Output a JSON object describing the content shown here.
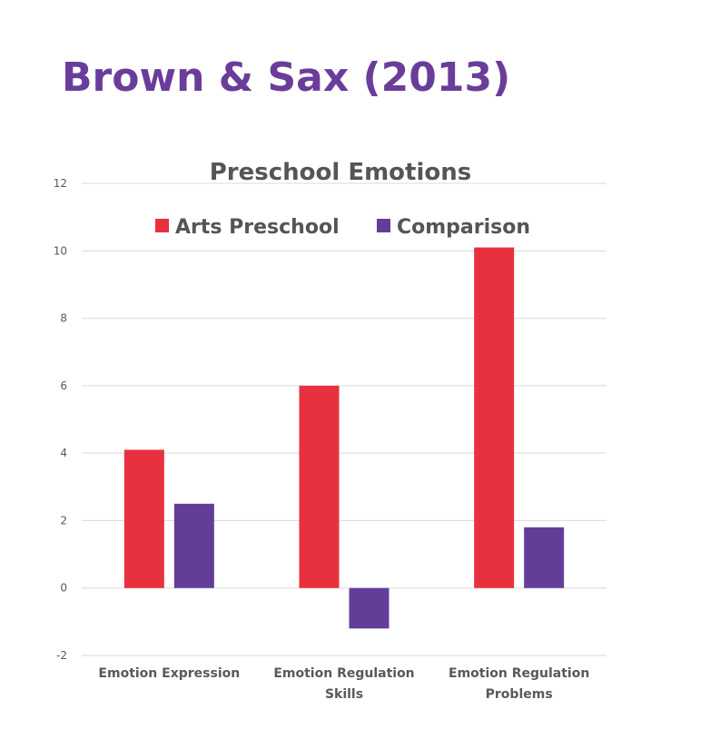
{
  "heading": "Brown & Sax (2013)",
  "chart_data": {
    "type": "bar",
    "title": "Preschool Emotions",
    "categories": [
      "Emotion Expression",
      "Emotion Regulation Skills",
      "Emotion Regulation Problems"
    ],
    "category_lines": [
      [
        "Emotion Expression"
      ],
      [
        "Emotion Regulation",
        "Skills"
      ],
      [
        "Emotion Regulation",
        "Problems"
      ]
    ],
    "series": [
      {
        "name": "Arts Preschool",
        "values": [
          4.1,
          6.0,
          10.1
        ],
        "color": "#e8313f"
      },
      {
        "name": "Comparison",
        "values": [
          2.5,
          -1.2,
          1.8
        ],
        "color": "#633e99"
      }
    ],
    "ylim": [
      -2,
      12
    ],
    "yticks": [
      -2,
      0,
      2,
      4,
      6,
      8,
      10,
      12
    ],
    "grid": true,
    "legend": "top"
  }
}
